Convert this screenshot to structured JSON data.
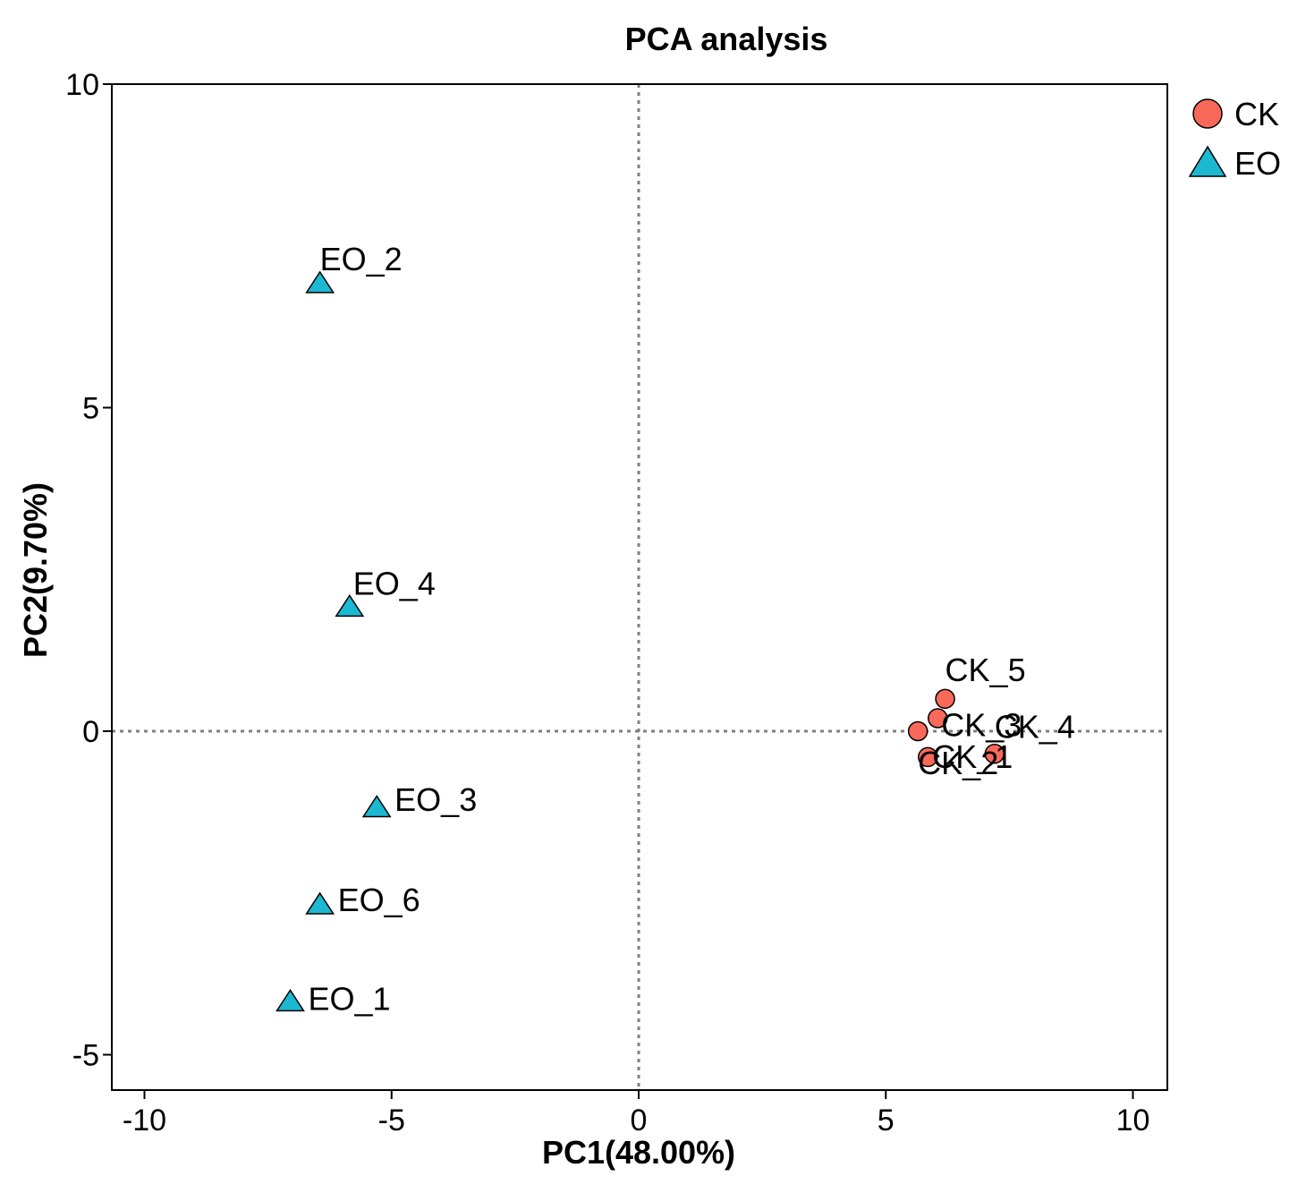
{
  "chart_data": {
    "type": "scatter",
    "title": "PCA analysis",
    "xlabel": "PC1(48.00%)",
    "ylabel": "PC2(9.70%)",
    "xlim": [
      -10.7,
      10.7
    ],
    "ylim": [
      -5.6,
      10
    ],
    "xticks": [
      -10,
      -5,
      0,
      5,
      10
    ],
    "yticks": [
      -5,
      0,
      5,
      10
    ],
    "reference_lines": {
      "x": 0,
      "y": 0,
      "style": "dotted"
    },
    "grid": false,
    "legend_position": "top-right outside",
    "series": [
      {
        "name": "CK",
        "marker": "circle",
        "color": "#F8695A",
        "points": [
          {
            "label": "CK_1",
            "x": 5.85,
            "y": -0.4
          },
          {
            "label": "CK_2",
            "x": 5.65,
            "y": 0.0
          },
          {
            "label": "CK_3",
            "x": 6.05,
            "y": 0.2
          },
          {
            "label": "CK_4",
            "x": 7.2,
            "y": -0.35
          },
          {
            "label": "CK_5",
            "x": 6.2,
            "y": 0.5
          }
        ]
      },
      {
        "name": "EO",
        "marker": "triangle",
        "color": "#1CB8D2",
        "points": [
          {
            "label": "EO_1",
            "x": -7.05,
            "y": -4.2
          },
          {
            "label": "EO_2",
            "x": -6.45,
            "y": 6.9
          },
          {
            "label": "EO_3",
            "x": -5.3,
            "y": -1.2
          },
          {
            "label": "EO_4",
            "x": -5.85,
            "y": 1.9
          },
          {
            "label": "EO_6",
            "x": -6.45,
            "y": -2.7
          }
        ]
      }
    ]
  }
}
